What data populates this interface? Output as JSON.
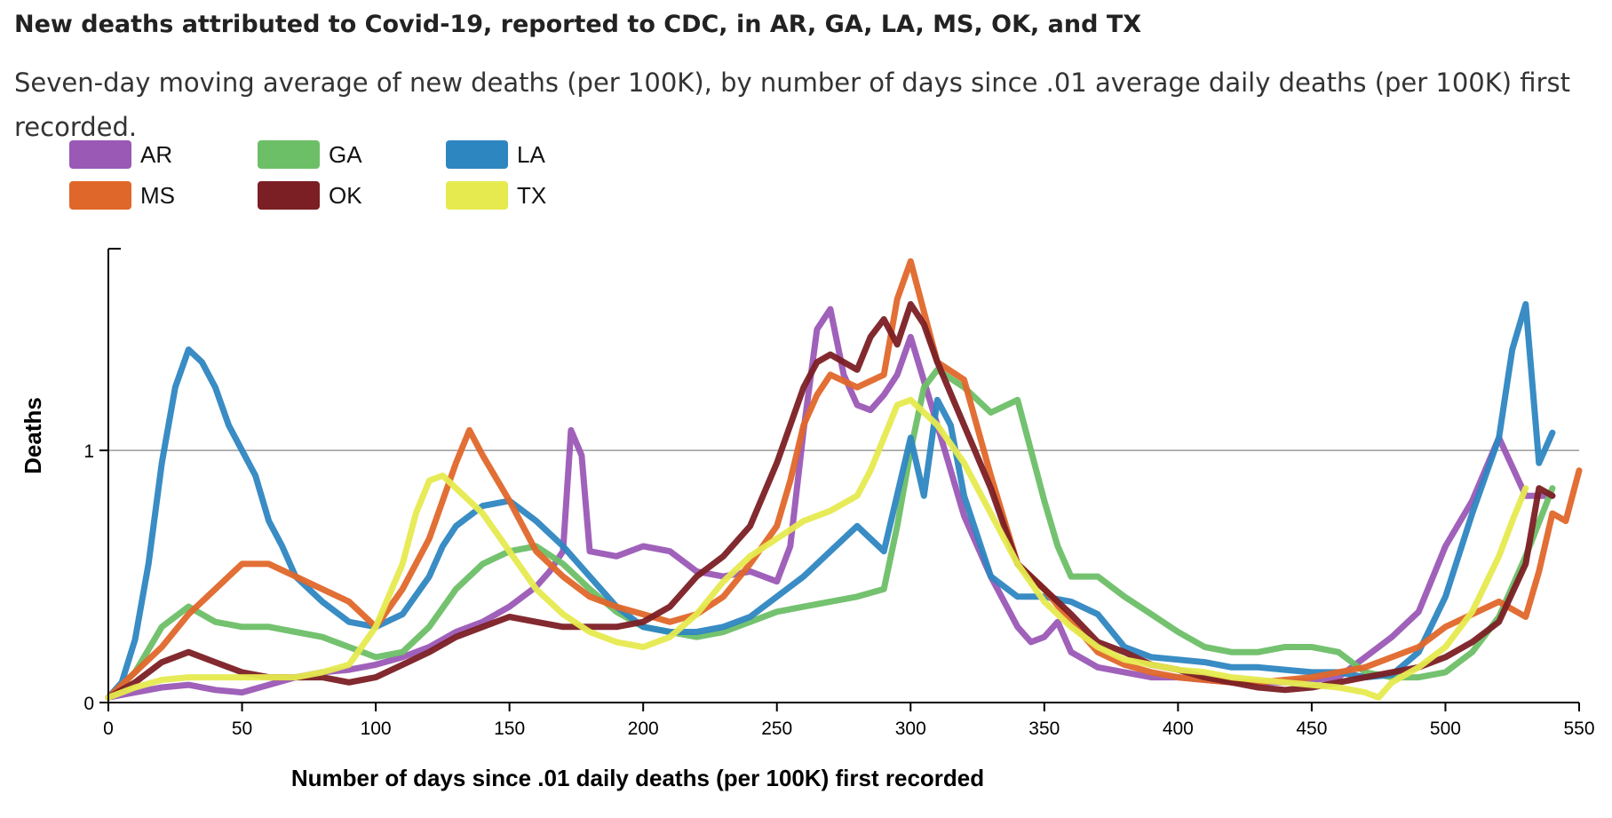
{
  "chart_data": {
    "type": "line",
    "title": "New deaths attributed to Covid-19, reported to CDC, in AR, GA, LA, MS, OK, and TX",
    "subtitle": "Seven-day moving average of new deaths (per 100K), by number of days since .01 average daily deaths (per 100K) first recorded.",
    "xlabel": "Number of days since .01 daily deaths (per 100K) first recorded",
    "ylabel": "Deaths",
    "xlim": [
      0,
      550
    ],
    "ylim": [
      0,
      1.8
    ],
    "x_ticks": [
      0,
      50,
      100,
      150,
      200,
      250,
      300,
      350,
      400,
      450,
      500,
      550
    ],
    "y_ticks": [
      0,
      1
    ],
    "gridlines": [
      1
    ],
    "legend_position": "top-left",
    "series": [
      {
        "name": "AR",
        "color": "#9b59b6",
        "x": [
          0,
          10,
          20,
          30,
          40,
          50,
          60,
          70,
          80,
          90,
          100,
          110,
          120,
          130,
          140,
          150,
          160,
          165,
          170,
          173,
          177,
          180,
          190,
          200,
          210,
          220,
          230,
          240,
          250,
          255,
          260,
          265,
          270,
          275,
          280,
          285,
          290,
          295,
          300,
          310,
          320,
          325,
          330,
          340,
          345,
          350,
          355,
          360,
          370,
          380,
          390,
          400,
          410,
          420,
          430,
          440,
          450,
          460,
          470,
          480,
          490,
          500,
          510,
          520,
          530,
          540
        ],
        "y": [
          0.02,
          0.04,
          0.06,
          0.07,
          0.05,
          0.04,
          0.07,
          0.1,
          0.12,
          0.13,
          0.15,
          0.18,
          0.22,
          0.28,
          0.32,
          0.38,
          0.46,
          0.52,
          0.6,
          1.08,
          0.98,
          0.6,
          0.58,
          0.62,
          0.6,
          0.52,
          0.5,
          0.52,
          0.48,
          0.62,
          1.08,
          1.48,
          1.56,
          1.3,
          1.18,
          1.16,
          1.22,
          1.3,
          1.45,
          1.1,
          0.74,
          0.62,
          0.5,
          0.3,
          0.24,
          0.26,
          0.32,
          0.2,
          0.14,
          0.12,
          0.1,
          0.1,
          0.09,
          0.08,
          0.08,
          0.08,
          0.09,
          0.1,
          0.18,
          0.26,
          0.36,
          0.62,
          0.8,
          1.05,
          0.82,
          0.82
        ]
      },
      {
        "name": "GA",
        "color": "#6dbf67",
        "x": [
          0,
          10,
          20,
          30,
          40,
          50,
          60,
          70,
          80,
          90,
          100,
          110,
          120,
          130,
          140,
          150,
          160,
          170,
          180,
          190,
          200,
          210,
          220,
          230,
          240,
          250,
          260,
          270,
          280,
          290,
          295,
          300,
          305,
          310,
          320,
          330,
          340,
          345,
          350,
          355,
          360,
          370,
          380,
          390,
          400,
          410,
          420,
          430,
          440,
          450,
          460,
          470,
          480,
          490,
          500,
          510,
          520,
          530,
          540
        ],
        "y": [
          0.02,
          0.12,
          0.3,
          0.38,
          0.32,
          0.3,
          0.3,
          0.28,
          0.26,
          0.22,
          0.18,
          0.2,
          0.3,
          0.45,
          0.55,
          0.6,
          0.62,
          0.55,
          0.45,
          0.36,
          0.3,
          0.28,
          0.26,
          0.28,
          0.32,
          0.36,
          0.38,
          0.4,
          0.42,
          0.45,
          0.7,
          1.0,
          1.25,
          1.32,
          1.25,
          1.15,
          1.2,
          1.0,
          0.8,
          0.62,
          0.5,
          0.5,
          0.42,
          0.35,
          0.28,
          0.22,
          0.2,
          0.2,
          0.22,
          0.22,
          0.2,
          0.12,
          0.1,
          0.1,
          0.12,
          0.2,
          0.34,
          0.58,
          0.85
        ]
      },
      {
        "name": "LA",
        "color": "#2e86c1",
        "x": [
          0,
          5,
          10,
          15,
          20,
          25,
          30,
          35,
          40,
          45,
          50,
          55,
          60,
          65,
          70,
          80,
          90,
          100,
          110,
          120,
          125,
          130,
          140,
          150,
          160,
          170,
          180,
          190,
          200,
          210,
          220,
          230,
          240,
          250,
          260,
          270,
          280,
          290,
          300,
          305,
          310,
          315,
          320,
          330,
          340,
          350,
          360,
          370,
          380,
          390,
          400,
          410,
          420,
          430,
          440,
          450,
          460,
          470,
          480,
          490,
          500,
          510,
          520,
          525,
          530,
          535,
          540
        ],
        "y": [
          0.02,
          0.08,
          0.25,
          0.55,
          0.95,
          1.25,
          1.4,
          1.35,
          1.25,
          1.1,
          1.0,
          0.9,
          0.72,
          0.62,
          0.5,
          0.4,
          0.32,
          0.3,
          0.35,
          0.5,
          0.62,
          0.7,
          0.78,
          0.8,
          0.72,
          0.62,
          0.5,
          0.38,
          0.3,
          0.28,
          0.28,
          0.3,
          0.34,
          0.42,
          0.5,
          0.6,
          0.7,
          0.6,
          1.05,
          0.82,
          1.2,
          1.1,
          0.82,
          0.5,
          0.42,
          0.42,
          0.4,
          0.35,
          0.22,
          0.18,
          0.17,
          0.16,
          0.14,
          0.14,
          0.13,
          0.12,
          0.12,
          0.1,
          0.11,
          0.2,
          0.42,
          0.75,
          1.05,
          1.4,
          1.58,
          0.95,
          1.07
        ]
      },
      {
        "name": "MS",
        "color": "#e0672a",
        "x": [
          0,
          10,
          20,
          30,
          40,
          50,
          60,
          70,
          80,
          90,
          100,
          110,
          120,
          130,
          135,
          140,
          150,
          160,
          170,
          180,
          190,
          200,
          210,
          220,
          230,
          240,
          250,
          255,
          260,
          265,
          270,
          280,
          290,
          295,
          300,
          305,
          310,
          320,
          330,
          340,
          350,
          360,
          370,
          380,
          390,
          400,
          410,
          420,
          430,
          440,
          450,
          460,
          470,
          480,
          490,
          500,
          510,
          520,
          530,
          535,
          540,
          545,
          550
        ],
        "y": [
          0.02,
          0.12,
          0.22,
          0.35,
          0.45,
          0.55,
          0.55,
          0.5,
          0.45,
          0.4,
          0.3,
          0.45,
          0.65,
          0.95,
          1.08,
          0.98,
          0.8,
          0.6,
          0.5,
          0.42,
          0.38,
          0.35,
          0.32,
          0.35,
          0.42,
          0.55,
          0.7,
          0.88,
          1.1,
          1.22,
          1.3,
          1.25,
          1.3,
          1.6,
          1.75,
          1.55,
          1.35,
          1.28,
          0.9,
          0.55,
          0.45,
          0.32,
          0.2,
          0.15,
          0.12,
          0.1,
          0.09,
          0.08,
          0.08,
          0.09,
          0.1,
          0.12,
          0.14,
          0.18,
          0.22,
          0.3,
          0.35,
          0.4,
          0.34,
          0.52,
          0.75,
          0.72,
          0.92
        ]
      },
      {
        "name": "OK",
        "color": "#7b1f24",
        "x": [
          0,
          10,
          20,
          30,
          40,
          50,
          60,
          70,
          80,
          90,
          100,
          110,
          120,
          130,
          140,
          150,
          160,
          170,
          180,
          190,
          200,
          210,
          220,
          230,
          240,
          250,
          255,
          260,
          265,
          270,
          280,
          285,
          290,
          295,
          300,
          305,
          310,
          320,
          330,
          340,
          350,
          360,
          370,
          380,
          390,
          400,
          410,
          420,
          430,
          440,
          450,
          460,
          470,
          480,
          490,
          500,
          510,
          520,
          530,
          535,
          540
        ],
        "y": [
          0.02,
          0.08,
          0.16,
          0.2,
          0.16,
          0.12,
          0.1,
          0.1,
          0.1,
          0.08,
          0.1,
          0.15,
          0.2,
          0.26,
          0.3,
          0.34,
          0.32,
          0.3,
          0.3,
          0.3,
          0.32,
          0.38,
          0.5,
          0.58,
          0.7,
          0.95,
          1.1,
          1.25,
          1.35,
          1.38,
          1.32,
          1.45,
          1.52,
          1.42,
          1.58,
          1.5,
          1.35,
          1.1,
          0.85,
          0.55,
          0.45,
          0.35,
          0.24,
          0.2,
          0.15,
          0.13,
          0.1,
          0.08,
          0.06,
          0.05,
          0.06,
          0.08,
          0.1,
          0.12,
          0.14,
          0.18,
          0.24,
          0.32,
          0.55,
          0.85,
          0.82
        ]
      },
      {
        "name": "TX",
        "color": "#e6ea4f",
        "x": [
          0,
          10,
          20,
          30,
          40,
          50,
          60,
          70,
          80,
          90,
          100,
          110,
          115,
          120,
          125,
          130,
          140,
          150,
          160,
          170,
          180,
          190,
          200,
          210,
          220,
          230,
          240,
          250,
          260,
          270,
          280,
          285,
          290,
          295,
          300,
          310,
          320,
          330,
          340,
          350,
          360,
          370,
          380,
          390,
          400,
          410,
          420,
          430,
          440,
          450,
          460,
          470,
          475,
          480,
          490,
          500,
          510,
          520,
          525,
          530
        ],
        "y": [
          0.02,
          0.06,
          0.09,
          0.1,
          0.1,
          0.1,
          0.1,
          0.1,
          0.12,
          0.15,
          0.3,
          0.55,
          0.75,
          0.88,
          0.9,
          0.85,
          0.75,
          0.6,
          0.45,
          0.35,
          0.28,
          0.24,
          0.22,
          0.26,
          0.35,
          0.48,
          0.58,
          0.65,
          0.72,
          0.76,
          0.82,
          0.92,
          1.05,
          1.18,
          1.2,
          1.1,
          0.95,
          0.75,
          0.55,
          0.4,
          0.3,
          0.22,
          0.17,
          0.15,
          0.13,
          0.12,
          0.1,
          0.09,
          0.08,
          0.07,
          0.06,
          0.04,
          0.02,
          0.08,
          0.14,
          0.22,
          0.36,
          0.58,
          0.72,
          0.85
        ]
      }
    ]
  }
}
